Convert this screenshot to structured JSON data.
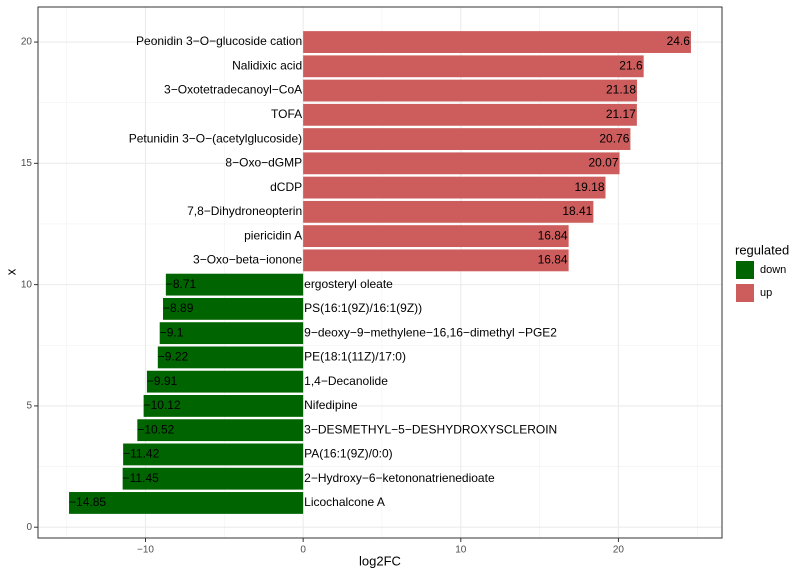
{
  "chart_data": {
    "type": "hbar",
    "xlabel": "log2FC",
    "ylabel": "x",
    "categories": [
      "Licochalcone A",
      "2−Hydroxy−6−ketononatrienedioate",
      "PA(16:1(9Z)/0:0)",
      "3−DESMETHYL−5−DESHYDROXYSCLEROIN",
      "Nifedipine",
      "1,4−Decanolide",
      "PE(18:1(11Z)/17:0)",
      "9−deoxy−9−methylene−16,16−dimethyl −PGE2",
      "PS(16:1(9Z)/16:1(9Z))",
      "ergosteryl oleate",
      "3−Oxo−beta−ionone",
      "piericidin A",
      "7,8−Dihydroneopterin",
      "dCDP",
      "8−Oxo−dGMP",
      "Petunidin 3−O−(acetylglucoside)",
      "TOFA",
      "3−Oxotetradecanoyl−CoA",
      "Nalidixic acid",
      "Peonidin 3−O−glucoside cation"
    ],
    "positions": [
      1,
      2,
      3,
      4,
      5,
      6,
      7,
      8,
      9,
      10,
      11,
      12,
      13,
      14,
      15,
      16,
      17,
      18,
      19,
      20
    ],
    "values": [
      -14.85,
      -11.45,
      -11.42,
      -10.52,
      -10.12,
      -9.91,
      -9.22,
      -9.1,
      -8.89,
      -8.71,
      16.84,
      16.84,
      18.41,
      19.18,
      20.07,
      20.76,
      21.17,
      21.18,
      21.6,
      24.6
    ],
    "value_labels": [
      "−14.85",
      "−11.45",
      "−11.42",
      "−10.52",
      "−10.12",
      "−9.91",
      "−9.22",
      "−9.1",
      "−8.89",
      "−8.71",
      "16.84",
      "16.84",
      "18.41",
      "19.18",
      "20.07",
      "20.76",
      "21.17",
      "21.18",
      "21.6",
      "24.6"
    ],
    "regulated": [
      "down",
      "down",
      "down",
      "down",
      "down",
      "down",
      "down",
      "down",
      "down",
      "down",
      "up",
      "up",
      "up",
      "up",
      "up",
      "up",
      "up",
      "up",
      "up",
      "up"
    ],
    "legend": {
      "title": "regulated",
      "entries": [
        {
          "name": "down",
          "color": "#006400"
        },
        {
          "name": "up",
          "color": "#cd5c5c"
        }
      ]
    },
    "xlim": [
      -16.82,
      26.57
    ],
    "xticks": [
      {
        "value": -10,
        "label": "−10"
      },
      0,
      10,
      20
    ],
    "xminorticks": [
      -15,
      -5,
      5,
      15,
      25
    ],
    "ylim": [
      -0.445,
      21.445
    ],
    "yticks": [
      0,
      5,
      10,
      15,
      20
    ],
    "yminorticks": [
      2.5,
      7.5,
      12.5,
      17.5
    ],
    "grid": true
  }
}
